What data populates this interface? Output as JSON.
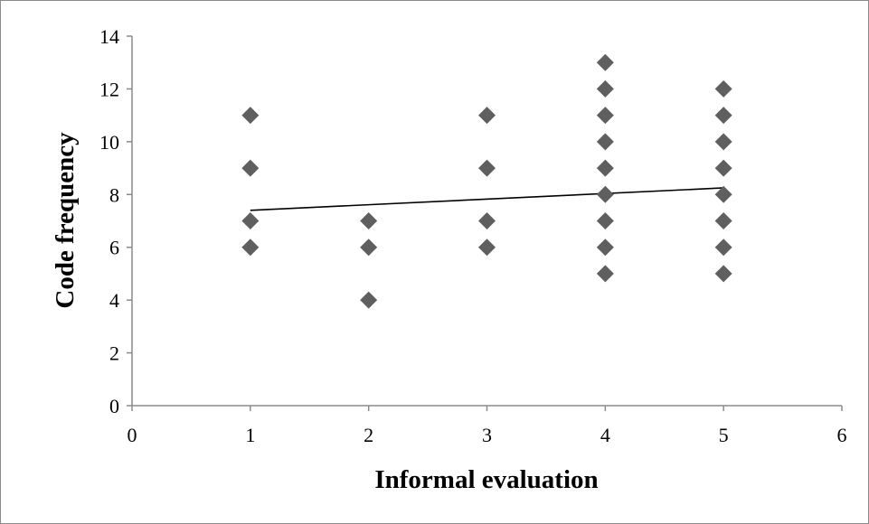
{
  "chart_data": {
    "type": "scatter",
    "title": "",
    "xlabel": "Informal evaluation",
    "ylabel": "Code frequency",
    "xlim": [
      0,
      6
    ],
    "ylim": [
      0,
      14
    ],
    "x_ticks": [
      0,
      1,
      2,
      3,
      4,
      5,
      6
    ],
    "y_ticks": [
      0,
      2,
      4,
      6,
      8,
      10,
      12,
      14
    ],
    "grid": false,
    "legend": "none",
    "marker": "diamond",
    "marker_color": "#5f5f5f",
    "series": [
      {
        "points": [
          {
            "x": 1,
            "y": 11
          },
          {
            "x": 1,
            "y": 9
          },
          {
            "x": 1,
            "y": 7
          },
          {
            "x": 1,
            "y": 6
          },
          {
            "x": 2,
            "y": 7
          },
          {
            "x": 2,
            "y": 6
          },
          {
            "x": 2,
            "y": 4
          },
          {
            "x": 3,
            "y": 11
          },
          {
            "x": 3,
            "y": 9
          },
          {
            "x": 3,
            "y": 7
          },
          {
            "x": 3,
            "y": 6
          },
          {
            "x": 4,
            "y": 13
          },
          {
            "x": 4,
            "y": 12
          },
          {
            "x": 4,
            "y": 11
          },
          {
            "x": 4,
            "y": 10
          },
          {
            "x": 4,
            "y": 9
          },
          {
            "x": 4,
            "y": 8
          },
          {
            "x": 4,
            "y": 7
          },
          {
            "x": 4,
            "y": 6
          },
          {
            "x": 4,
            "y": 5
          },
          {
            "x": 5,
            "y": 12
          },
          {
            "x": 5,
            "y": 11
          },
          {
            "x": 5,
            "y": 10
          },
          {
            "x": 5,
            "y": 9
          },
          {
            "x": 5,
            "y": 8
          },
          {
            "x": 5,
            "y": 7
          },
          {
            "x": 5,
            "y": 6
          },
          {
            "x": 5,
            "y": 5
          }
        ]
      }
    ],
    "trendline": {
      "type": "linear",
      "x_range": [
        1,
        5
      ],
      "y_start": 7.4,
      "y_end": 8.25,
      "color": "#000000"
    }
  }
}
